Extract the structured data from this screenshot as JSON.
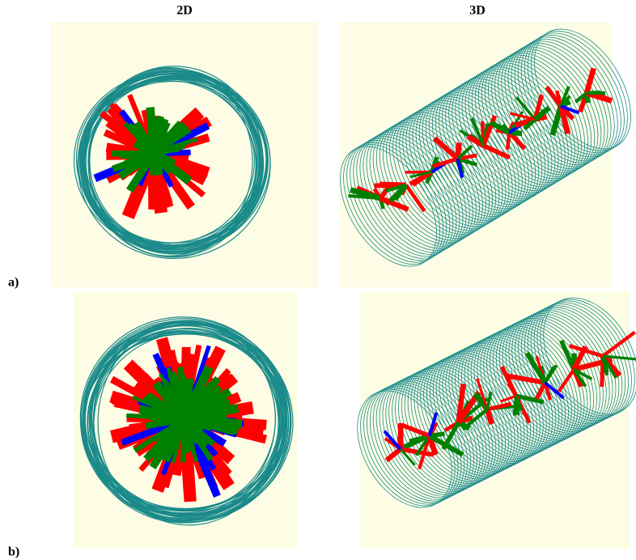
{
  "columns": [
    "2D",
    "3D"
  ],
  "rows": [
    "a)",
    "b)"
  ]
}
